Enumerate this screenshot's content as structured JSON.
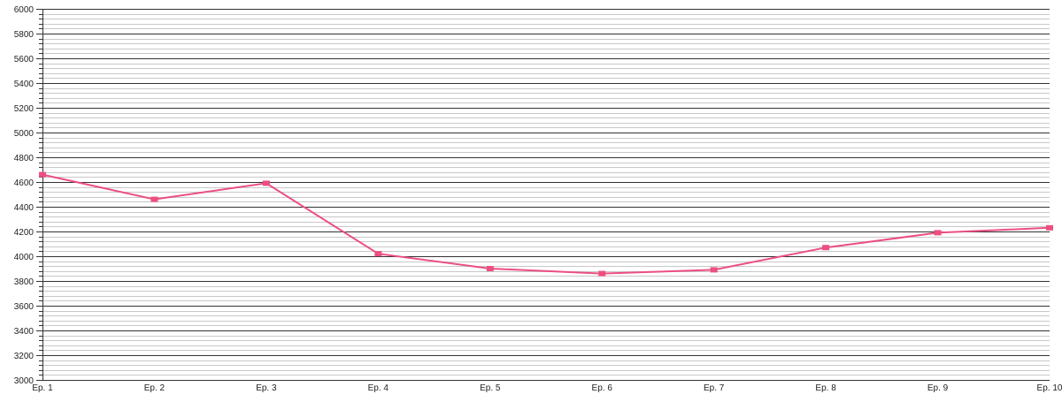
{
  "chart_data": {
    "type": "line",
    "title": "",
    "xlabel": "",
    "ylabel": "",
    "categories": [
      "Ep. 1",
      "Ep. 2",
      "Ep. 3",
      "Ep. 4",
      "Ep. 5",
      "Ep. 6",
      "Ep. 7",
      "Ep. 8",
      "Ep. 9",
      "Ep. 10"
    ],
    "series": [
      {
        "values": [
          4660,
          4460,
          4590,
          4020,
          3900,
          3860,
          3890,
          4070,
          4190,
          4230
        ],
        "color": "#ec4f80"
      }
    ],
    "ylim": [
      3000,
      6000
    ],
    "y_major_step": 200,
    "y_minor_step": 40,
    "yticks": [
      "3000",
      "3200",
      "3400",
      "3600",
      "3800",
      "4000",
      "4200",
      "4400",
      "4600",
      "4800",
      "5000",
      "5200",
      "5400",
      "5600",
      "5800",
      "6000"
    ],
    "grid": true,
    "legend": "none",
    "marker": "square"
  }
}
